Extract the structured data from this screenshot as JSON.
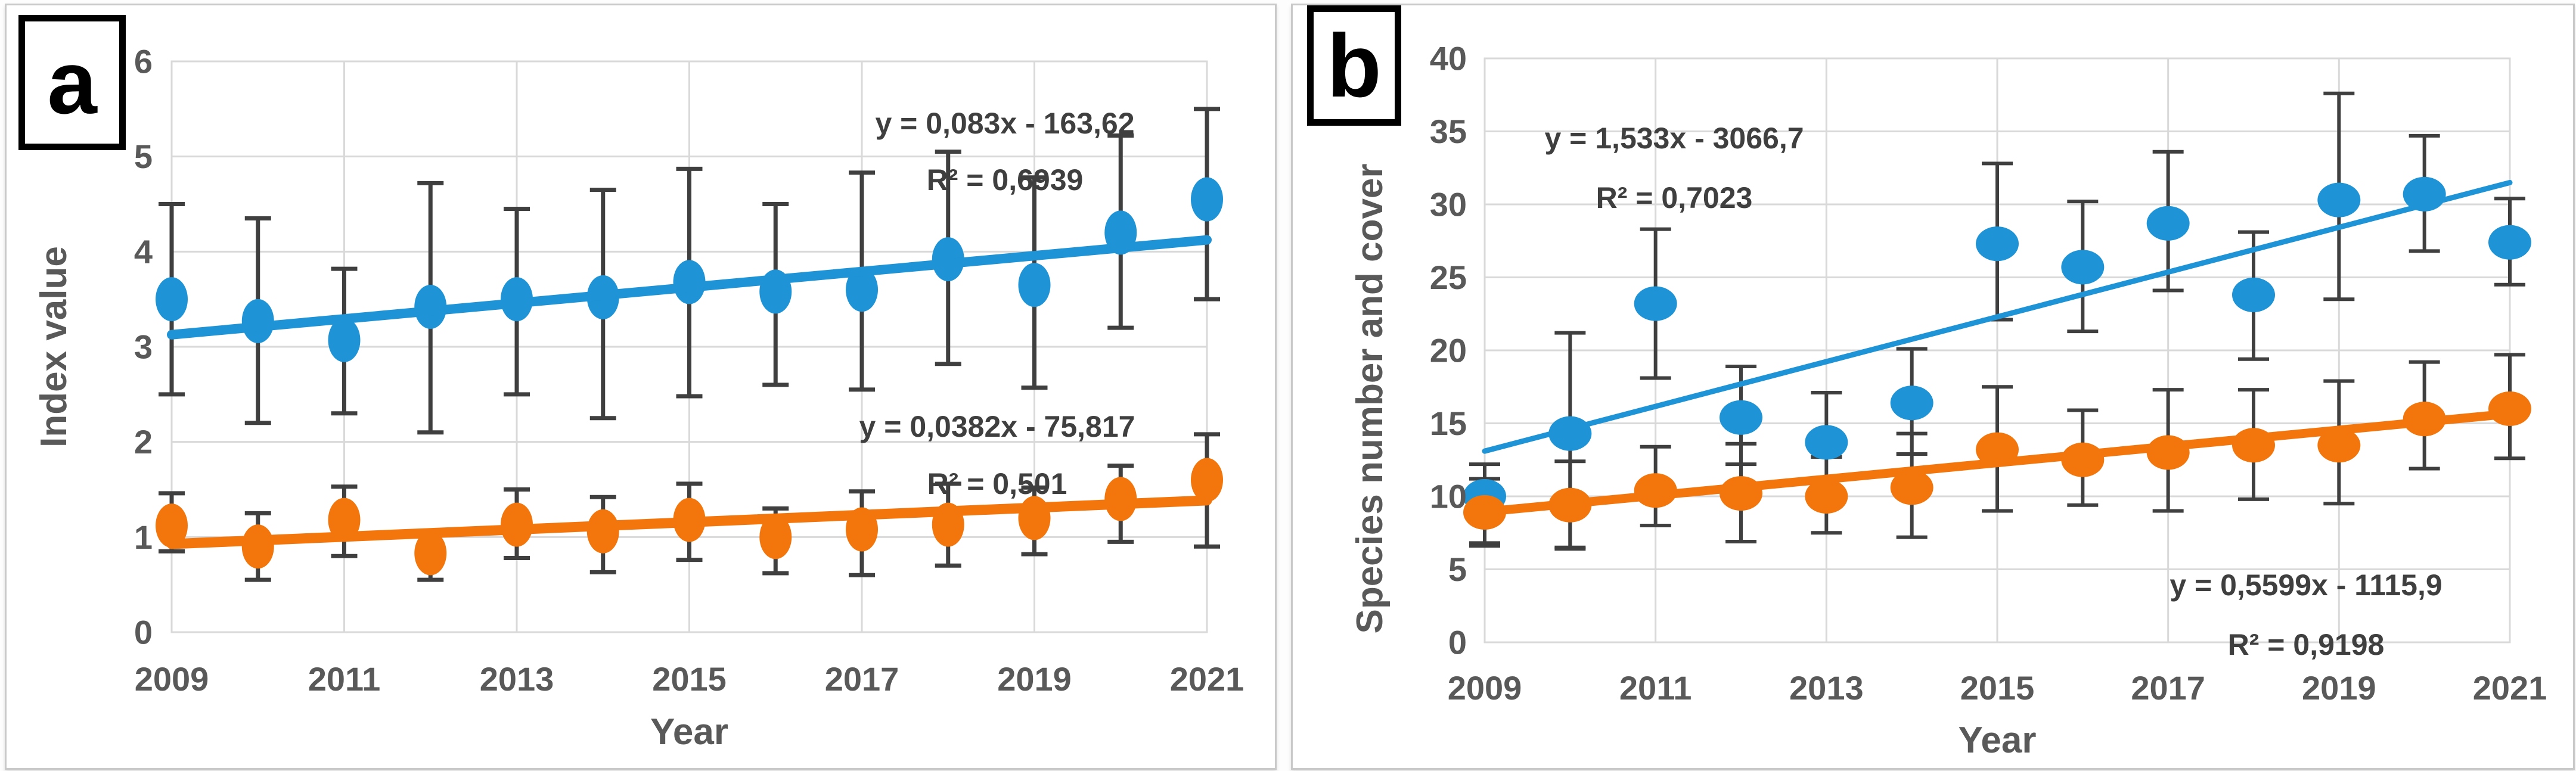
{
  "figure_caption": "Two-panel scatter figure with linear trends, 2009-2021",
  "colors": {
    "blue_series": "#1E93D6",
    "orange_series": "#F2760C",
    "error_bar": "#3f3f3f",
    "grid": "#d9d9d9",
    "tick_text": "#595959",
    "equation_text": "#3f3f3f",
    "panel_border": "#c9c9c9",
    "tag_border": "#000000"
  },
  "chart_data": [
    {
      "type": "scatter",
      "panel_label": "a",
      "xlabel": "Year",
      "ylabel": "Index value",
      "x": [
        2009,
        2010,
        2011,
        2012,
        2013,
        2014,
        2015,
        2016,
        2017,
        2018,
        2019,
        2020,
        2021
      ],
      "x_tick_labels": [
        "2009",
        "2011",
        "2013",
        "2015",
        "2017",
        "2019",
        "2021"
      ],
      "ylim": [
        0,
        6
      ],
      "yticks": [
        0,
        1,
        2,
        3,
        4,
        5,
        6
      ],
      "grid": "both",
      "legend": "none",
      "series": [
        {
          "name": "blue",
          "color": "#1E93D6",
          "values": [
            3.5,
            3.27,
            3.07,
            3.42,
            3.5,
            3.52,
            3.68,
            3.58,
            3.6,
            3.92,
            3.65,
            4.2,
            4.55
          ],
          "err_low": [
            2.5,
            2.2,
            2.3,
            2.1,
            2.5,
            2.25,
            2.48,
            2.6,
            2.55,
            2.82,
            2.57,
            3.2,
            3.5
          ],
          "err_high": [
            4.5,
            4.35,
            3.82,
            4.72,
            4.45,
            4.65,
            4.87,
            4.5,
            4.83,
            5.05,
            4.78,
            5.22,
            5.5
          ],
          "trend": {
            "equation": "y = 0,083x - 163,62",
            "r_squared": "R² = 0,6939",
            "slope": 0.083,
            "intercept": -163.62
          }
        },
        {
          "name": "orange",
          "color": "#F2760C",
          "values": [
            1.12,
            0.9,
            1.18,
            0.83,
            1.13,
            1.06,
            1.18,
            1.0,
            1.08,
            1.13,
            1.2,
            1.4,
            1.6
          ],
          "err_low": [
            0.85,
            0.55,
            0.8,
            0.55,
            0.78,
            0.63,
            0.76,
            0.62,
            0.6,
            0.7,
            0.82,
            0.95,
            0.9
          ],
          "err_high": [
            1.46,
            1.25,
            1.53,
            1.05,
            1.5,
            1.42,
            1.56,
            1.3,
            1.48,
            1.56,
            1.52,
            1.75,
            2.08
          ],
          "trend": {
            "equation": "y = 0,0382x - 75,817",
            "r_squared": "R² = 0,501",
            "slope": 0.0382,
            "intercept": -75.817
          }
        }
      ]
    },
    {
      "type": "scatter",
      "panel_label": "b",
      "xlabel": "Year",
      "ylabel": "Species number and cover",
      "x": [
        2009,
        2010,
        2011,
        2012,
        2013,
        2014,
        2015,
        2016,
        2017,
        2018,
        2019,
        2020,
        2021
      ],
      "x_tick_labels": [
        "2009",
        "2011",
        "2013",
        "2015",
        "2017",
        "2019",
        "2021"
      ],
      "ylim": [
        0,
        40
      ],
      "yticks": [
        0,
        5,
        10,
        15,
        20,
        25,
        30,
        35,
        40
      ],
      "grid": "both",
      "legend": "none",
      "series": [
        {
          "name": "blue",
          "color": "#1E93D6",
          "values": [
            10,
            14.3,
            23.2,
            15.4,
            13.7,
            16.4,
            27.3,
            25.7,
            28.7,
            23.8,
            30.3,
            30.7,
            27.4
          ],
          "err_low": [
            6.8,
            6.5,
            18.1,
            12.2,
            12.7,
            12.9,
            22.1,
            21.3,
            24.1,
            19.4,
            23.5,
            26.8,
            24.5
          ],
          "err_high": [
            12.2,
            21.2,
            28.3,
            18.9,
            17.1,
            20.1,
            32.8,
            30.2,
            33.6,
            28.1,
            37.6,
            34.7,
            30.4
          ],
          "trend": {
            "equation": "y = 1,533x - 3066,7",
            "r_squared": "R² = 0,7023",
            "slope": 1.533,
            "intercept": -3066.7
          }
        },
        {
          "name": "orange",
          "color": "#F2760C",
          "values": [
            8.9,
            9.4,
            10.4,
            10.2,
            10.0,
            10.6,
            13.2,
            12.5,
            13.0,
            13.5,
            13.5,
            15.3,
            16.0
          ],
          "err_low": [
            6.6,
            6.4,
            8.0,
            6.9,
            7.5,
            7.2,
            9.0,
            9.4,
            9.0,
            9.8,
            9.5,
            11.9,
            12.6
          ],
          "err_high": [
            11.2,
            12.4,
            13.4,
            13.6,
            12.7,
            14.3,
            17.5,
            15.9,
            17.3,
            17.3,
            17.9,
            19.2,
            19.7
          ],
          "trend": {
            "equation": "y = 0,5599x - 1115,9",
            "r_squared": "R² = 0,9198",
            "slope": 0.5599,
            "intercept": -1115.9
          }
        }
      ]
    }
  ]
}
